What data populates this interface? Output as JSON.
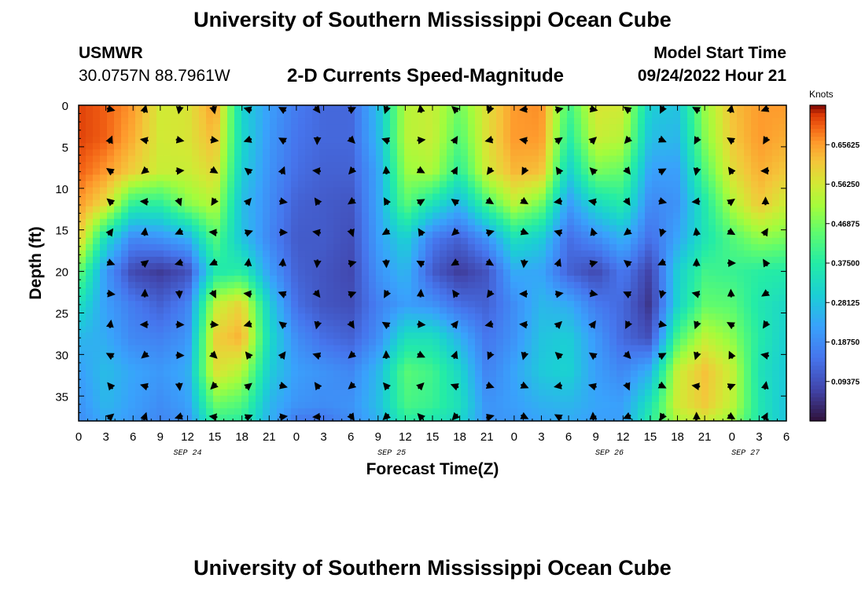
{
  "header": {
    "title": "University of Southern Mississippi Ocean Cube",
    "station_name": "USMWR",
    "station_coords": "30.0757N  88.7961W",
    "model_start_label": "Model Start Time",
    "model_start_value": "09/24/2022 Hour 21"
  },
  "footer": {
    "title": "University of Southern Mississippi Ocean Cube"
  },
  "chart_data": {
    "type": "heatmap",
    "title": "2-D Currents Speed-Magnitude",
    "xlabel": "Forecast Time(Z)",
    "ylabel": "Depth (ft)",
    "colorbar_label": "Knots",
    "x_ticks": [
      "0",
      "3",
      "6",
      "9",
      "12",
      "15",
      "18",
      "21",
      "0",
      "3",
      "6",
      "9",
      "12",
      "15",
      "18",
      "21",
      "0",
      "3",
      "6",
      "9",
      "12",
      "15",
      "18",
      "21",
      "0",
      "3",
      "6"
    ],
    "y_ticks": [
      "0",
      "5",
      "10",
      "15",
      "20",
      "25",
      "30",
      "35"
    ],
    "ylim": [
      0,
      38
    ],
    "xlim_hours": [
      0,
      78
    ],
    "date_labels": [
      {
        "text": "SEP 24",
        "hour": 12
      },
      {
        "text": "SEP 25",
        "hour": 34.5
      },
      {
        "text": "SEP 26",
        "hour": 58.5
      },
      {
        "text": "SEP 27",
        "hour": 73.5
      }
    ],
    "colorbar_ticks": [
      "0.65625",
      "0.56250",
      "0.46875",
      "0.37500",
      "0.28125",
      "0.18750",
      "0.09375"
    ],
    "colorbar_values": [
      0.65625,
      0.5625,
      0.46875,
      0.375,
      0.28125,
      0.1875,
      0.09375
    ],
    "value_range": [
      0,
      0.75
    ],
    "grid": {
      "hours": [
        0,
        3,
        6,
        9,
        12,
        15,
        18,
        21,
        24,
        27,
        30,
        33,
        36,
        39,
        42,
        45,
        48,
        51,
        54,
        57,
        60,
        63,
        66,
        69,
        72,
        75,
        78
      ],
      "depths": [
        0,
        4,
        8,
        12,
        16,
        20,
        24,
        28,
        32,
        36,
        38
      ],
      "speeds": [
        [
          0.72,
          0.7,
          0.66,
          0.56,
          0.57,
          0.66,
          0.31,
          0.22,
          0.16,
          0.13,
          0.13,
          0.27,
          0.53,
          0.55,
          0.46,
          0.58,
          0.66,
          0.67,
          0.41,
          0.57,
          0.56,
          0.3,
          0.28,
          0.5,
          0.62,
          0.66,
          0.66
        ],
        [
          0.72,
          0.7,
          0.64,
          0.56,
          0.57,
          0.63,
          0.32,
          0.21,
          0.15,
          0.13,
          0.13,
          0.26,
          0.53,
          0.55,
          0.43,
          0.58,
          0.66,
          0.66,
          0.37,
          0.55,
          0.53,
          0.27,
          0.26,
          0.48,
          0.61,
          0.66,
          0.64
        ],
        [
          0.7,
          0.66,
          0.6,
          0.55,
          0.55,
          0.59,
          0.3,
          0.2,
          0.14,
          0.12,
          0.12,
          0.23,
          0.5,
          0.52,
          0.38,
          0.56,
          0.63,
          0.62,
          0.3,
          0.47,
          0.45,
          0.22,
          0.22,
          0.43,
          0.58,
          0.64,
          0.61
        ],
        [
          0.66,
          0.58,
          0.38,
          0.38,
          0.48,
          0.53,
          0.27,
          0.19,
          0.12,
          0.11,
          0.1,
          0.23,
          0.44,
          0.34,
          0.25,
          0.41,
          0.53,
          0.46,
          0.21,
          0.32,
          0.37,
          0.18,
          0.2,
          0.36,
          0.52,
          0.61,
          0.55
        ],
        [
          0.61,
          0.33,
          0.18,
          0.2,
          0.24,
          0.44,
          0.28,
          0.18,
          0.11,
          0.11,
          0.09,
          0.22,
          0.31,
          0.16,
          0.12,
          0.2,
          0.34,
          0.3,
          0.14,
          0.19,
          0.25,
          0.14,
          0.23,
          0.35,
          0.43,
          0.49,
          0.47
        ],
        [
          0.46,
          0.21,
          0.08,
          0.06,
          0.09,
          0.36,
          0.38,
          0.22,
          0.12,
          0.1,
          0.08,
          0.2,
          0.26,
          0.11,
          0.06,
          0.1,
          0.24,
          0.23,
          0.12,
          0.08,
          0.16,
          0.07,
          0.3,
          0.41,
          0.4,
          0.38,
          0.37
        ],
        [
          0.34,
          0.22,
          0.16,
          0.12,
          0.17,
          0.54,
          0.6,
          0.3,
          0.14,
          0.1,
          0.09,
          0.17,
          0.22,
          0.2,
          0.14,
          0.12,
          0.19,
          0.26,
          0.24,
          0.16,
          0.13,
          0.05,
          0.31,
          0.45,
          0.44,
          0.36,
          0.32
        ],
        [
          0.26,
          0.24,
          0.18,
          0.17,
          0.2,
          0.6,
          0.64,
          0.33,
          0.19,
          0.14,
          0.12,
          0.19,
          0.34,
          0.34,
          0.25,
          0.15,
          0.2,
          0.28,
          0.3,
          0.21,
          0.13,
          0.09,
          0.42,
          0.54,
          0.49,
          0.37,
          0.3
        ],
        [
          0.22,
          0.27,
          0.23,
          0.21,
          0.24,
          0.58,
          0.53,
          0.3,
          0.22,
          0.2,
          0.18,
          0.26,
          0.44,
          0.41,
          0.32,
          0.17,
          0.23,
          0.29,
          0.31,
          0.22,
          0.18,
          0.25,
          0.55,
          0.62,
          0.55,
          0.35,
          0.29
        ],
        [
          0.2,
          0.26,
          0.22,
          0.19,
          0.22,
          0.46,
          0.43,
          0.26,
          0.2,
          0.19,
          0.2,
          0.27,
          0.42,
          0.4,
          0.34,
          0.2,
          0.22,
          0.25,
          0.26,
          0.23,
          0.22,
          0.35,
          0.56,
          0.61,
          0.54,
          0.36,
          0.28
        ],
        [
          0.19,
          0.24,
          0.21,
          0.18,
          0.2,
          0.4,
          0.38,
          0.25,
          0.16,
          0.15,
          0.19,
          0.25,
          0.38,
          0.36,
          0.32,
          0.2,
          0.21,
          0.23,
          0.24,
          0.22,
          0.22,
          0.38,
          0.52,
          0.56,
          0.5,
          0.36,
          0.28
        ]
      ]
    },
    "vectors_note": "Arrows show current direction at each 4-hour / 4-ft grid point"
  }
}
